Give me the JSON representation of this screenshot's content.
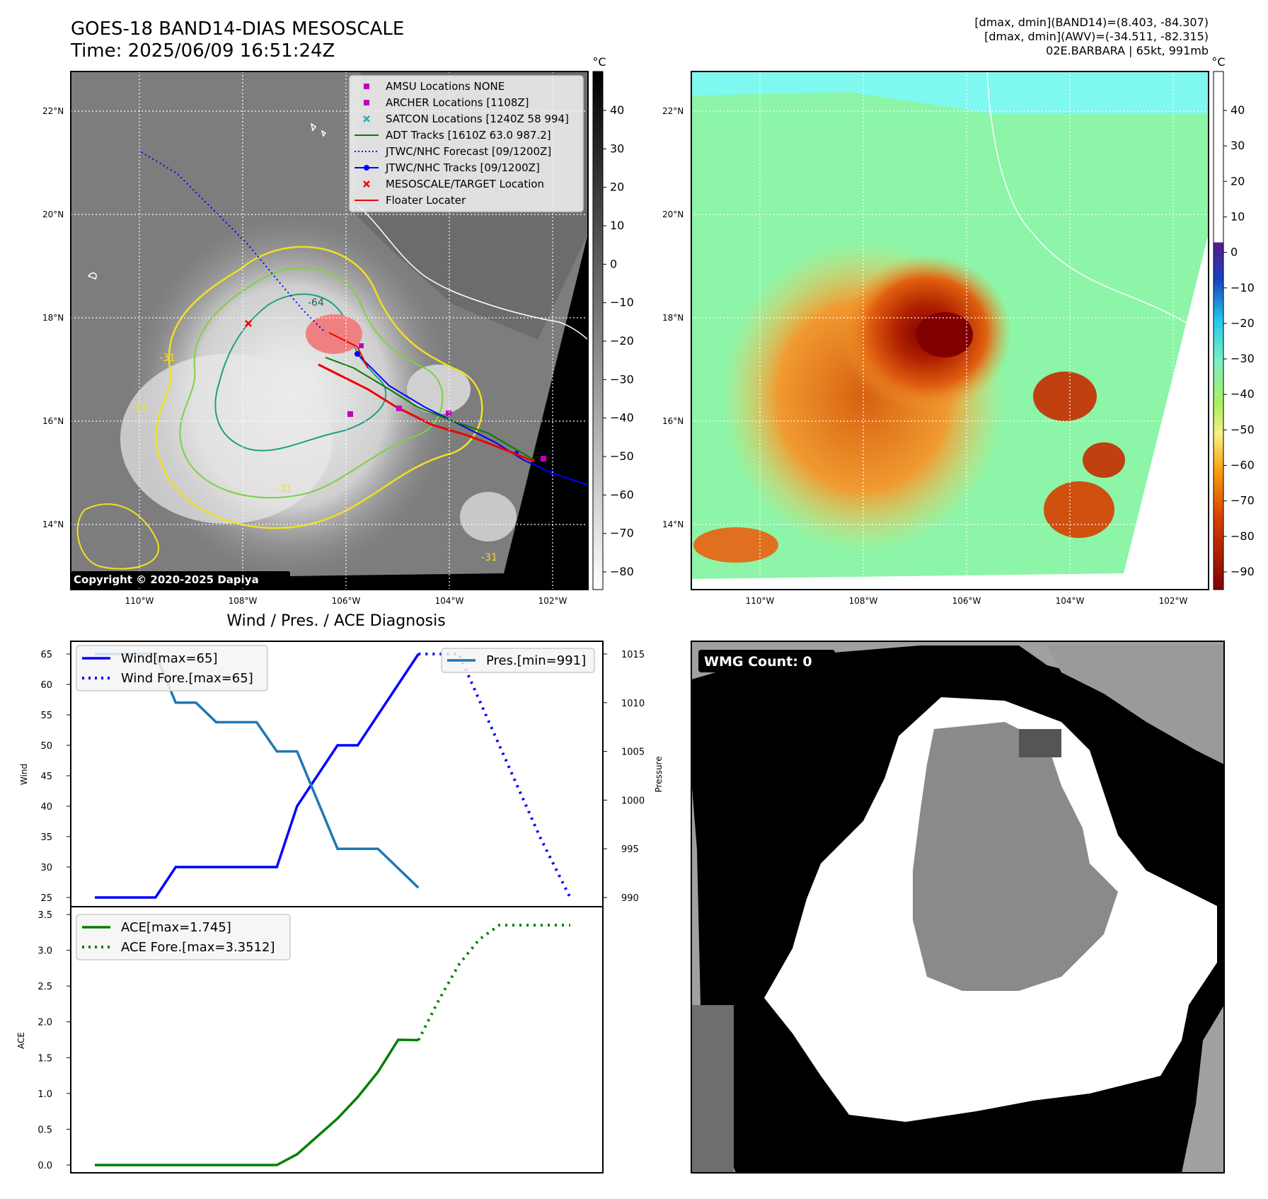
{
  "header": {
    "title_line1": "GOES-18 BAND14-DIAS MESOSCALE",
    "title_line2": "Time: 2025/06/09 16:51:24Z",
    "info_line1": "[dmax, dmin](BAND14)=(8.403, -84.307)",
    "info_line2": "[dmax, dmin](AWV)=(-34.511, -82.315)",
    "info_line3": "02E.BARBARA | 65kt, 991mb"
  },
  "map_axes": {
    "lat_ticks": [
      "22°N",
      "20°N",
      "18°N",
      "16°N",
      "14°N"
    ],
    "lon_ticks": [
      "110°W",
      "108°W",
      "106°W",
      "104°W",
      "102°W"
    ]
  },
  "ir_panel": {
    "colorbar_unit": "°C",
    "colorbar_ticks": [
      "40",
      "30",
      "20",
      "10",
      "0",
      "−10",
      "−20",
      "−30",
      "−40",
      "−50",
      "−60",
      "−70",
      "−80"
    ],
    "contour_labels": [
      "-31",
      "-31",
      "-31",
      "-64",
      "-31"
    ],
    "copyright": "Copyright © 2020-2025 Dapiya",
    "legend": [
      {
        "label": "AMSU Locations NONE",
        "marker": "square",
        "color": "#c000c0"
      },
      {
        "label": "ARCHER Locations [1108Z]",
        "marker": "square",
        "color": "#c000c0"
      },
      {
        "label": "SATCON Locations [1240Z 58 994]",
        "marker": "x",
        "color": "#20b0b0"
      },
      {
        "label": "ADT Tracks [1610Z 63.0 987.2]",
        "marker": "line",
        "color": "#008000"
      },
      {
        "label": "JTWC/NHC Forecast [09/1200Z]",
        "marker": "dotted",
        "color": "#0000ff"
      },
      {
        "label": "JTWC/NHC Tracks [09/1200Z]",
        "marker": "line-dot",
        "color": "#0000ff"
      },
      {
        "label": "MESOSCALE/TARGET Location",
        "marker": "x",
        "color": "#ee0000"
      },
      {
        "label": "Floater Locater",
        "marker": "line",
        "color": "#ee0000"
      }
    ]
  },
  "awv_panel": {
    "colorbar_unit": "°C",
    "colorbar_ticks": [
      "40",
      "30",
      "20",
      "10",
      "0",
      "−10",
      "−20",
      "−30",
      "−40",
      "−50",
      "−60",
      "−70",
      "−80",
      "−90"
    ]
  },
  "wmg_panel": {
    "label": "WMG Count: 0"
  },
  "chart_data": [
    {
      "type": "line",
      "title": "Wind / Pres. / ACE Diagnosis",
      "ylabel": "Wind",
      "y2label": "Pressure",
      "ylim": [
        24,
        66
      ],
      "y2lim": [
        990,
        1015
      ],
      "yticks": [
        "65",
        "60",
        "55",
        "50",
        "45",
        "40",
        "35",
        "30",
        "25"
      ],
      "y2ticks": [
        "1015",
        "1010",
        "1005",
        "1000",
        "995",
        "990"
      ],
      "xlim": [
        0,
        24
      ],
      "series": [
        {
          "name": "Wind[max=65]",
          "axis": "left",
          "style": "solid",
          "color": "#0000ff",
          "x": [
            0,
            3,
            4,
            9,
            10,
            12,
            13,
            16
          ],
          "y": [
            25,
            25,
            30,
            30,
            40,
            50,
            50,
            65
          ]
        },
        {
          "name": "Wind Fore.[max=65]",
          "axis": "left",
          "style": "dotted",
          "color": "#0000ff",
          "x": [
            16,
            18,
            20,
            22,
            23.5
          ],
          "y": [
            65,
            65,
            50,
            35,
            25
          ]
        },
        {
          "name": "Pres.[min=991]",
          "axis": "right",
          "style": "solid",
          "color": "#1f77b4",
          "x": [
            0,
            2,
            3,
            4,
            5,
            6,
            8,
            9,
            10,
            11,
            12,
            14,
            15,
            16
          ],
          "y": [
            1015,
            1015,
            1015,
            1010,
            1010,
            1008,
            1008,
            1005,
            1005,
            1000,
            995,
            995,
            993,
            991
          ]
        }
      ]
    },
    {
      "type": "line",
      "ylabel": "ACE",
      "ylim": [
        -0.1,
        3.5
      ],
      "yticks": [
        "3.5",
        "3.0",
        "2.5",
        "2.0",
        "1.5",
        "1.0",
        "0.5",
        "0.0"
      ],
      "xlim": [
        0,
        24
      ],
      "series": [
        {
          "name": "ACE[max=1.745]",
          "style": "solid",
          "color": "#008000",
          "x": [
            0,
            9,
            10,
            11,
            12,
            13,
            14,
            15,
            16
          ],
          "y": [
            0,
            0,
            0.15,
            0.4,
            0.65,
            0.95,
            1.3,
            1.75,
            1.745
          ]
        },
        {
          "name": "ACE Fore.[max=3.3512]",
          "style": "dotted",
          "color": "#008000",
          "x": [
            16,
            17,
            18,
            19,
            20,
            21,
            22,
            23.5
          ],
          "y": [
            1.745,
            2.3,
            2.8,
            3.15,
            3.3512,
            3.3512,
            3.3512,
            3.3512
          ]
        }
      ]
    }
  ]
}
